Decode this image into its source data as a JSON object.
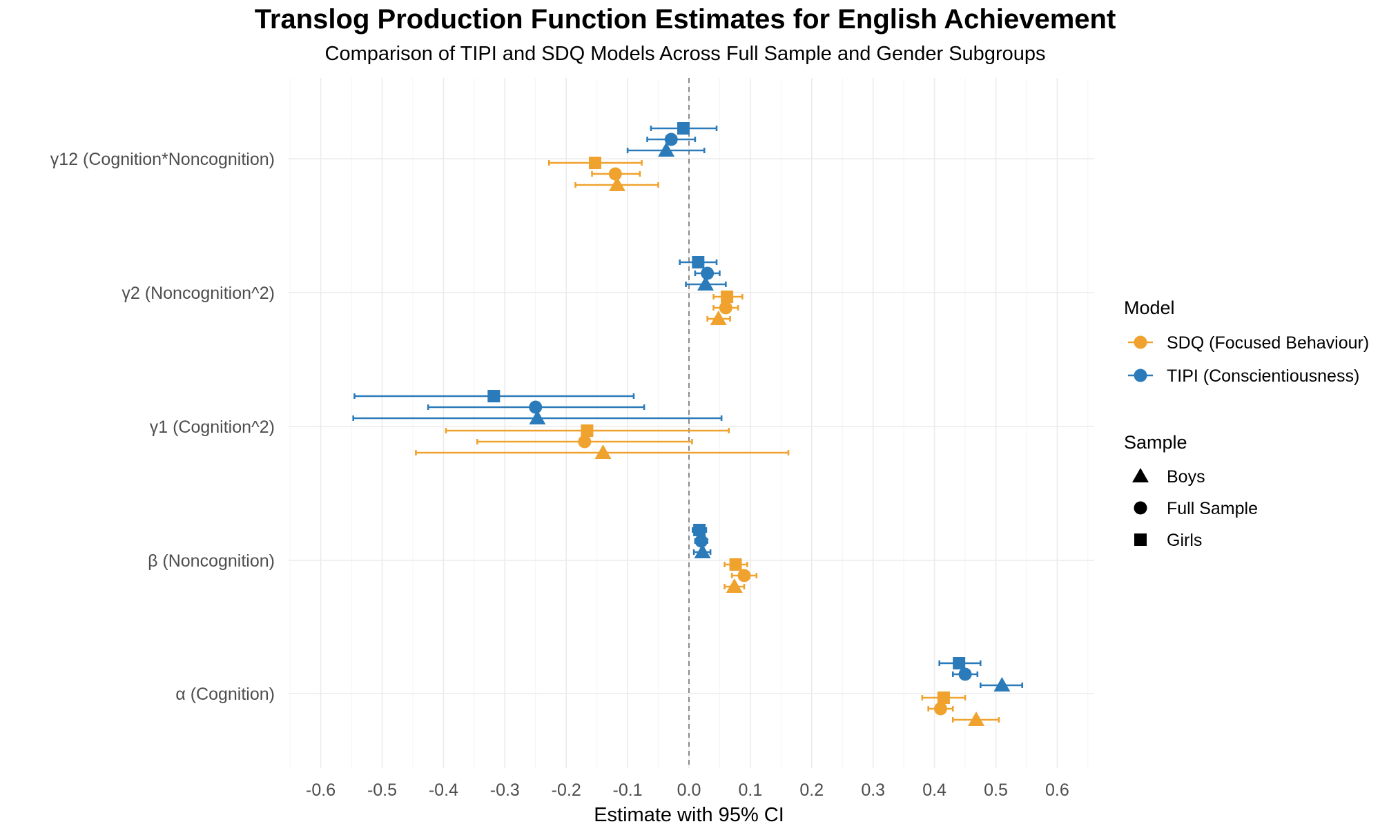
{
  "chart_data": {
    "type": "forest",
    "title": "Translog Production Function Estimates for English Achievement",
    "subtitle": "Comparison of TIPI and SDQ Models Across Full Sample and Gender Subgroups",
    "xlabel": "Estimate with 95% CI",
    "xlim": [
      -0.65,
      0.65
    ],
    "xticks": [
      -0.6,
      -0.5,
      -0.4,
      -0.3,
      -0.2,
      -0.1,
      0.0,
      0.1,
      0.2,
      0.3,
      0.4,
      0.5,
      0.6
    ],
    "xtick_labels": [
      "-0.6",
      "-0.5",
      "-0.4",
      "-0.3",
      "-0.2",
      "-0.1",
      "0.0",
      "0.1",
      "0.2",
      "0.3",
      "0.4",
      "0.5",
      "0.6"
    ],
    "reference_line": 0,
    "categories": [
      "γ12 (Cognition*Noncognition)",
      "γ2 (Noncognition^2)",
      "γ1 (Cognition^2)",
      "β (Noncognition)",
      "α (Cognition)"
    ],
    "model_legend": {
      "title": "Model",
      "entries": [
        {
          "name": "SDQ (Focused Behaviour)",
          "color": "#f0a22e"
        },
        {
          "name": "TIPI (Conscientiousness)",
          "color": "#2b7bba"
        }
      ]
    },
    "sample_legend": {
      "title": "Sample",
      "entries": [
        {
          "name": "Boys",
          "shape": "triangle"
        },
        {
          "name": "Full Sample",
          "shape": "circle"
        },
        {
          "name": "Girls",
          "shape": "square"
        }
      ]
    },
    "series": [
      {
        "model": "TIPI (Conscientiousness)",
        "sample": "Girls",
        "points": [
          {
            "category": "γ12 (Cognition*Noncognition)",
            "est": -0.009,
            "lo": -0.062,
            "hi": 0.045
          },
          {
            "category": "γ2 (Noncognition^2)",
            "est": 0.015,
            "lo": -0.015,
            "hi": 0.045
          },
          {
            "category": "γ1 (Cognition^2)",
            "est": -0.318,
            "lo": -0.545,
            "hi": -0.09
          },
          {
            "category": "β (Noncognition)",
            "est": 0.017,
            "lo": 0.006,
            "hi": 0.028
          },
          {
            "category": "α (Cognition)",
            "est": 0.44,
            "lo": 0.408,
            "hi": 0.475
          }
        ]
      },
      {
        "model": "TIPI (Conscientiousness)",
        "sample": "Full Sample",
        "points": [
          {
            "category": "γ12 (Cognition*Noncognition)",
            "est": -0.029,
            "lo": -0.068,
            "hi": 0.01
          },
          {
            "category": "γ2 (Noncognition^2)",
            "est": 0.03,
            "lo": 0.01,
            "hi": 0.05
          },
          {
            "category": "γ1 (Cognition^2)",
            "est": -0.25,
            "lo": -0.425,
            "hi": -0.073
          },
          {
            "category": "β (Noncognition)",
            "est": 0.02,
            "lo": 0.01,
            "hi": 0.03
          },
          {
            "category": "α (Cognition)",
            "est": 0.45,
            "lo": 0.43,
            "hi": 0.47
          }
        ]
      },
      {
        "model": "TIPI (Conscientiousness)",
        "sample": "Boys",
        "points": [
          {
            "category": "γ12 (Cognition*Noncognition)",
            "est": -0.037,
            "lo": -0.1,
            "hi": 0.025
          },
          {
            "category": "γ2 (Noncognition^2)",
            "est": 0.027,
            "lo": -0.005,
            "hi": 0.06
          },
          {
            "category": "γ1 (Cognition^2)",
            "est": -0.247,
            "lo": -0.547,
            "hi": 0.053
          },
          {
            "category": "β (Noncognition)",
            "est": 0.022,
            "lo": 0.008,
            "hi": 0.035
          },
          {
            "category": "α (Cognition)",
            "est": 0.51,
            "lo": 0.475,
            "hi": 0.543
          }
        ]
      },
      {
        "model": "SDQ (Focused Behaviour)",
        "sample": "Girls",
        "points": [
          {
            "category": "γ12 (Cognition*Noncognition)",
            "est": -0.153,
            "lo": -0.228,
            "hi": -0.077
          },
          {
            "category": "γ2 (Noncognition^2)",
            "est": 0.062,
            "lo": 0.04,
            "hi": 0.087
          },
          {
            "category": "γ1 (Cognition^2)",
            "est": -0.166,
            "lo": -0.396,
            "hi": 0.065
          },
          {
            "category": "β (Noncognition)",
            "est": 0.076,
            "lo": 0.058,
            "hi": 0.095
          },
          {
            "category": "α (Cognition)",
            "est": 0.415,
            "lo": 0.38,
            "hi": 0.45
          }
        ]
      },
      {
        "model": "SDQ (Focused Behaviour)",
        "sample": "Full Sample",
        "points": [
          {
            "category": "γ12 (Cognition*Noncognition)",
            "est": -0.12,
            "lo": -0.158,
            "hi": -0.08
          },
          {
            "category": "γ2 (Noncognition^2)",
            "est": 0.06,
            "lo": 0.04,
            "hi": 0.08
          },
          {
            "category": "γ1 (Cognition^2)",
            "est": -0.17,
            "lo": -0.345,
            "hi": 0.005
          },
          {
            "category": "β (Noncognition)",
            "est": 0.09,
            "lo": 0.07,
            "hi": 0.11
          },
          {
            "category": "α (Cognition)",
            "est": 0.41,
            "lo": 0.39,
            "hi": 0.43
          }
        ]
      },
      {
        "model": "SDQ (Focused Behaviour)",
        "sample": "Boys",
        "points": [
          {
            "category": "γ12 (Cognition*Noncognition)",
            "est": -0.117,
            "lo": -0.185,
            "hi": -0.05
          },
          {
            "category": "γ2 (Noncognition^2)",
            "est": 0.048,
            "lo": 0.03,
            "hi": 0.067
          },
          {
            "category": "γ1 (Cognition^2)",
            "est": -0.14,
            "lo": -0.445,
            "hi": 0.162
          },
          {
            "category": "β (Noncognition)",
            "est": 0.074,
            "lo": 0.058,
            "hi": 0.09
          },
          {
            "category": "α (Cognition)",
            "est": 0.468,
            "lo": 0.43,
            "hi": 0.505
          }
        ]
      }
    ]
  }
}
